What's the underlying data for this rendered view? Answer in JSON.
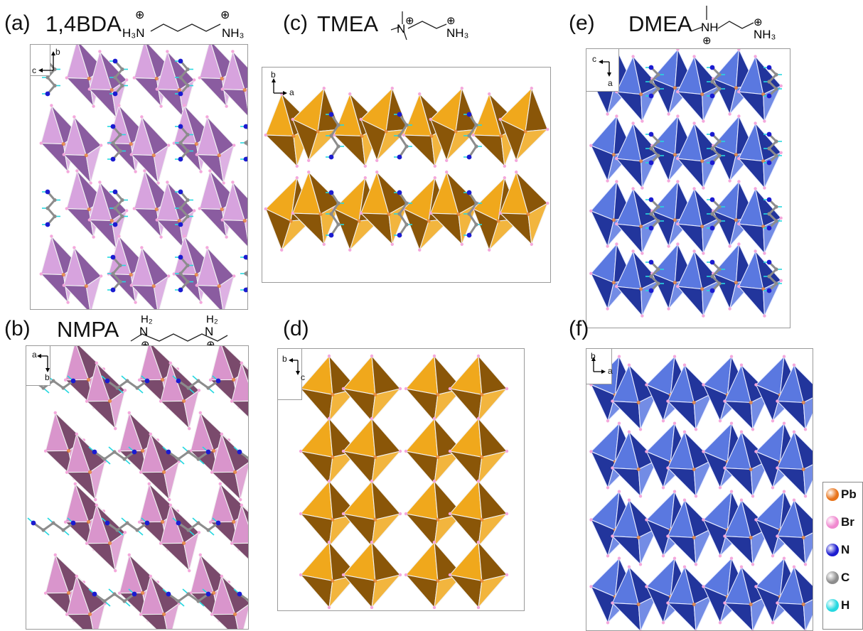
{
  "panels": {
    "a": {
      "label": "(a)",
      "compound": "1,4BDA",
      "axis_vertical": "b",
      "axis_horizontal": "c"
    },
    "b": {
      "label": "(b)",
      "compound": "NMPA",
      "axis_vertical": "b",
      "axis_horizontal": "a"
    },
    "c": {
      "label": "(c)",
      "compound": "TMEA",
      "axis_vertical": "b",
      "axis_horizontal": "a"
    },
    "d": {
      "label": "(d)",
      "compound": "",
      "axis_vertical": "c",
      "axis_horizontal": "b"
    },
    "e": {
      "label": "(e)",
      "compound": "DMEA",
      "axis_vertical": "a",
      "axis_horizontal": "c"
    },
    "f": {
      "label": "(f)",
      "compound": "",
      "axis_vertical": "b",
      "axis_horizontal": "a"
    }
  },
  "structures": {
    "a": {
      "left": "H₃N",
      "right": "NH₃",
      "charge": "⊕"
    },
    "b": {
      "h2": "H₂",
      "n": "N",
      "charge": "⊕"
    },
    "c": {
      "n": "N",
      "right": "NH₃",
      "charge": "⊕"
    },
    "e": {
      "nh": "NH",
      "right": "NH₃",
      "charge": "⊕"
    }
  },
  "legend": [
    {
      "label": "Pb",
      "color": "#e8731a"
    },
    {
      "label": "Br",
      "color": "#f08ad0"
    },
    {
      "label": "N",
      "color": "#1b1bd0"
    },
    {
      "label": "C",
      "color": "#8c8c8c"
    },
    {
      "label": "H",
      "color": "#27d8e0"
    }
  ],
  "colors": {
    "pink_light": "#d7a3de",
    "pink_dark": "#8a5ca0",
    "mauve_light": "#d995cc",
    "mauve_dark": "#7a4a6c",
    "orange_light": "#f0a81c",
    "orange_dark": "#8a5608",
    "blue_light": "#5a78e0",
    "blue_dark": "#22359c",
    "carbon": "#8c8c8c",
    "nitrogen": "#1b1bd0",
    "hydrogen": "#27d8e0"
  }
}
